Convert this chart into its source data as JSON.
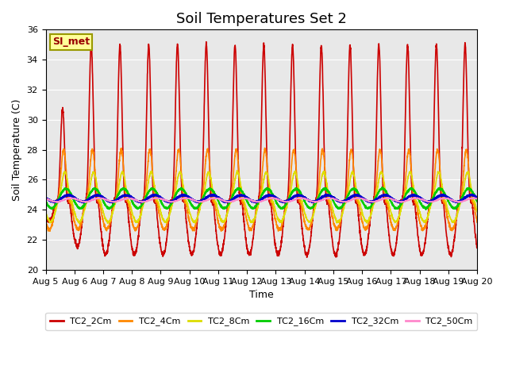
{
  "title": "Soil Temperatures Set 2",
  "xlabel": "Time",
  "ylabel": "Soil Temperature (C)",
  "ylim": [
    20,
    36
  ],
  "background_color": "#e8e8e8",
  "legend_label": "SI_met",
  "legend_bg": "#ffff99",
  "legend_text_color": "#990000",
  "series_names": [
    "TC2_2Cm",
    "TC2_4Cm",
    "TC2_8Cm",
    "TC2_16Cm",
    "TC2_32Cm",
    "TC2_50Cm"
  ],
  "series_colors": [
    "#cc0000",
    "#ff8800",
    "#dddd00",
    "#00cc00",
    "#0000cc",
    "#ff88cc"
  ],
  "series_lw": [
    1.2,
    1.2,
    1.2,
    1.5,
    1.8,
    1.2
  ],
  "x_tick_labels": [
    "Aug 5",
    "Aug 6",
    "Aug 7",
    "Aug 8",
    "Aug 9",
    "Aug 10",
    "Aug 11",
    "Aug 12",
    "Aug 13",
    "Aug 14",
    "Aug 15",
    "Aug 16",
    "Aug 17",
    "Aug 18",
    "Aug 19",
    "Aug 20"
  ],
  "x_tick_positions": [
    0,
    1,
    2,
    3,
    4,
    5,
    6,
    7,
    8,
    9,
    10,
    11,
    12,
    13,
    14,
    15
  ],
  "title_fontsize": 13,
  "axis_label_fontsize": 9,
  "tick_fontsize": 8
}
